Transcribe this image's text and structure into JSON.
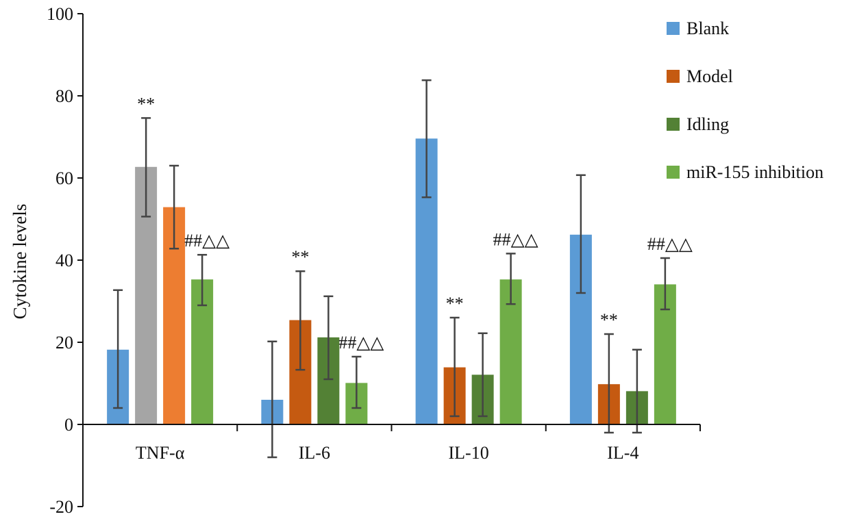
{
  "chart_data": {
    "type": "bar",
    "title": "",
    "xlabel": "",
    "ylabel": "Cytokine levels",
    "ylim": [
      -20,
      100
    ],
    "yticks": [
      -20,
      0,
      20,
      40,
      60,
      80,
      100
    ],
    "ytick_labels": [
      "-20",
      "0",
      "20",
      "40",
      "60",
      "80",
      "100"
    ],
    "categories": [
      "TNF-α",
      "IL-6",
      "IL-10",
      "IL-4"
    ],
    "legend": {
      "position": "top-right",
      "entries": [
        {
          "label": "Blank",
          "color": "#5b9bd5"
        },
        {
          "label": "Model",
          "color": "#c55a11"
        },
        {
          "label": "Idling",
          "color": "#538135"
        },
        {
          "label": "miR-155  inhibition",
          "color": "#70ad47"
        }
      ]
    },
    "groups": [
      {
        "category": "TNF-α",
        "bars": [
          {
            "value": 18.2,
            "err_low": 4.0,
            "err_high": 32.7,
            "color": "#5b9bd5"
          },
          {
            "value": 62.7,
            "err_low": 50.6,
            "err_high": 74.6,
            "color": "#a5a5a5",
            "annotation": "**"
          },
          {
            "value": 52.9,
            "err_low": 42.8,
            "err_high": 63.0,
            "color": "#ed7d31"
          },
          {
            "value": 35.3,
            "err_low": 29.0,
            "err_high": 41.3,
            "color": "#70ad47",
            "annotation": "##△△"
          }
        ]
      },
      {
        "category": "IL-6",
        "bars": [
          {
            "value": 6.0,
            "err_low": -8.0,
            "err_high": 20.2,
            "color": "#5b9bd5"
          },
          {
            "value": 25.4,
            "err_low": 13.3,
            "err_high": 37.3,
            "color": "#c55a11",
            "annotation": "**"
          },
          {
            "value": 21.2,
            "err_low": 11.0,
            "err_high": 31.2,
            "color": "#538135"
          },
          {
            "value": 10.1,
            "err_low": 4.0,
            "err_high": 16.5,
            "color": "#70ad47",
            "annotation": "##△△"
          }
        ]
      },
      {
        "category": "IL-10",
        "bars": [
          {
            "value": 69.6,
            "err_low": 55.3,
            "err_high": 83.8,
            "color": "#5b9bd5"
          },
          {
            "value": 13.9,
            "err_low": 2.0,
            "err_high": 26.0,
            "color": "#c55a11",
            "annotation": "**"
          },
          {
            "value": 12.1,
            "err_low": 2.0,
            "err_high": 22.2,
            "color": "#538135"
          },
          {
            "value": 35.3,
            "err_low": 29.3,
            "err_high": 41.6,
            "color": "#70ad47",
            "annotation": "##△△"
          }
        ]
      },
      {
        "category": "IL-4",
        "bars": [
          {
            "value": 46.2,
            "err_low": 32.0,
            "err_high": 60.7,
            "color": "#5b9bd5"
          },
          {
            "value": 9.8,
            "err_low": -2.0,
            "err_high": 22.0,
            "color": "#c55a11",
            "annotation": "**"
          },
          {
            "value": 8.1,
            "err_low": -2.0,
            "err_high": 18.2,
            "color": "#538135"
          },
          {
            "value": 34.1,
            "err_low": 28.0,
            "err_high": 40.5,
            "color": "#70ad47",
            "annotation": "##△△"
          }
        ]
      }
    ]
  }
}
